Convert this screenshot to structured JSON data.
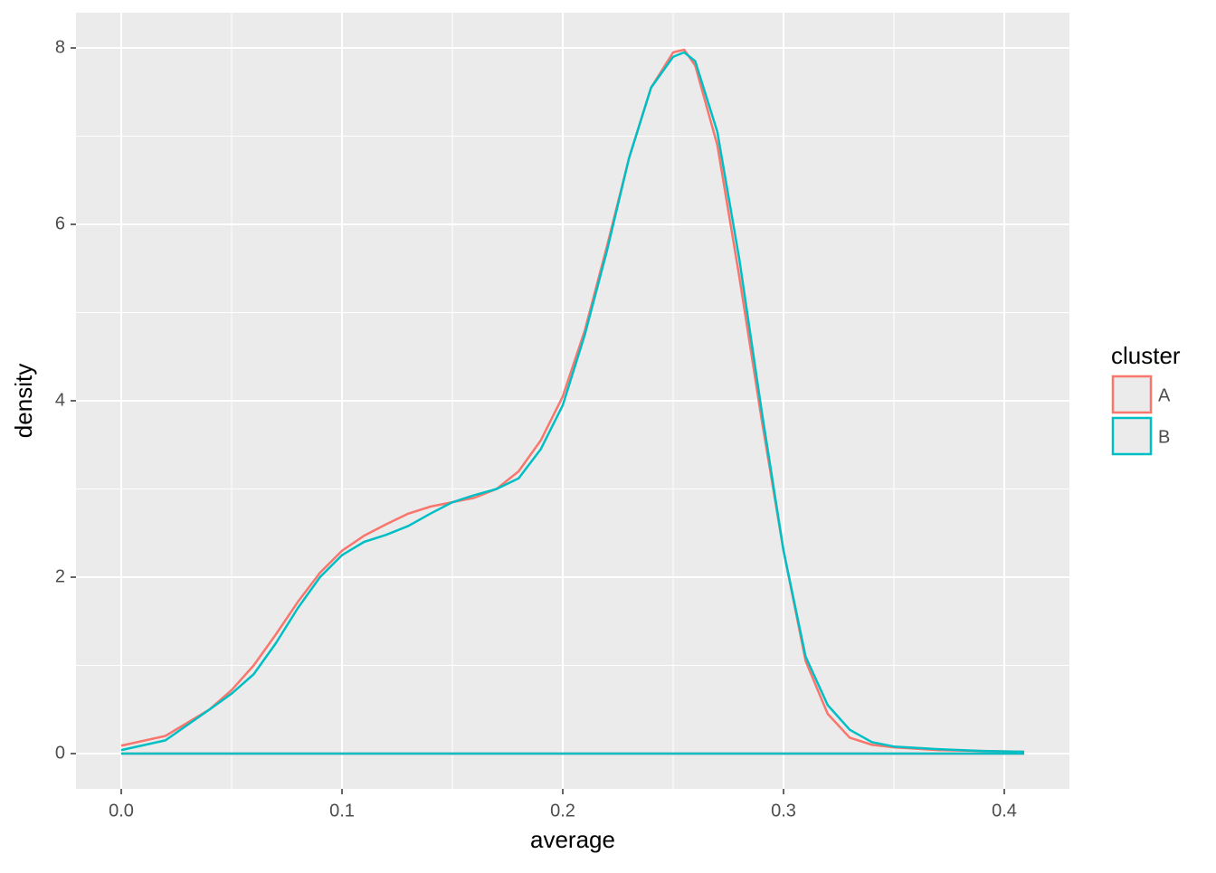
{
  "chart_data": {
    "type": "density",
    "x_label": "average",
    "y_label": "density",
    "x": [
      0,
      0.02,
      0.04,
      0.05,
      0.06,
      0.07,
      0.08,
      0.09,
      0.1,
      0.11,
      0.12,
      0.13,
      0.14,
      0.15,
      0.16,
      0.17,
      0.18,
      0.19,
      0.2,
      0.21,
      0.22,
      0.23,
      0.24,
      0.25,
      0.255,
      0.26,
      0.27,
      0.28,
      0.29,
      0.3,
      0.31,
      0.32,
      0.33,
      0.34,
      0.35,
      0.37,
      0.39,
      0.409
    ],
    "series": [
      {
        "name": "A",
        "color": "#F8766D",
        "values": [
          0.09,
          0.2,
          0.5,
          0.72,
          1.0,
          1.35,
          1.72,
          2.05,
          2.3,
          2.47,
          2.6,
          2.72,
          2.8,
          2.85,
          2.9,
          3.0,
          3.2,
          3.55,
          4.05,
          4.8,
          5.75,
          6.75,
          7.55,
          7.95,
          7.98,
          7.8,
          6.9,
          5.4,
          3.8,
          2.3,
          1.05,
          0.45,
          0.18,
          0.1,
          0.07,
          0.04,
          0.03,
          0.02
        ]
      },
      {
        "name": "B",
        "color": "#00BFC4",
        "values": [
          0.04,
          0.15,
          0.5,
          0.68,
          0.9,
          1.25,
          1.65,
          2.0,
          2.25,
          2.4,
          2.48,
          2.58,
          2.72,
          2.85,
          2.93,
          3.0,
          3.12,
          3.45,
          3.95,
          4.75,
          5.7,
          6.75,
          7.55,
          7.9,
          7.95,
          7.85,
          7.05,
          5.6,
          3.9,
          2.3,
          1.1,
          0.55,
          0.27,
          0.13,
          0.08,
          0.05,
          0.03,
          0.02
        ]
      }
    ],
    "legend_title": "cluster",
    "legend_position": "right",
    "xlim": [
      -0.0205,
      0.4295
    ],
    "ylim": [
      -0.4,
      8.4
    ],
    "xticks": [
      {
        "value": 0,
        "label": "0.0"
      },
      0.1,
      0.2,
      0.3,
      0.4
    ],
    "yticks": [
      0,
      2,
      4,
      6,
      8
    ],
    "x_minor_ticks": [
      0.05,
      0.15,
      0.25,
      0.35
    ],
    "y_minor_ticks": [
      1,
      3,
      5,
      7
    ],
    "grid": true
  }
}
